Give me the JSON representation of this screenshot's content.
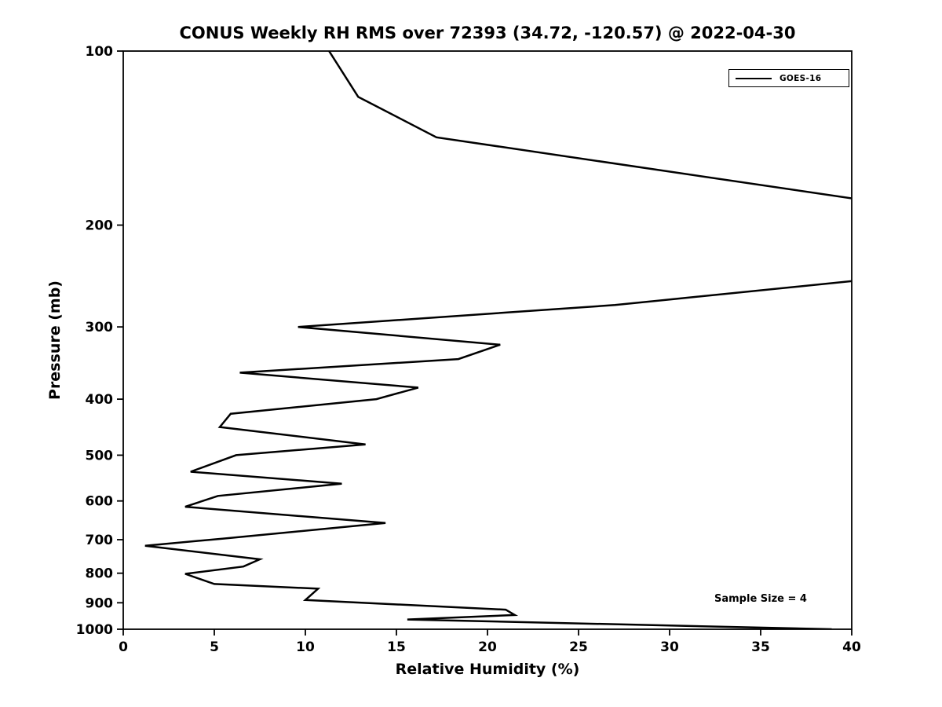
{
  "figure": {
    "background": "#ffffff",
    "line_color": "#000000"
  },
  "chart_data": {
    "type": "line",
    "title": "CONUS Weekly RH RMS over 72393 (34.72, -120.57) @ 2022-04-30",
    "xlabel": "Relative Humidity (%)",
    "ylabel": "Pressure (mb)",
    "xlim": [
      0,
      40
    ],
    "ylim": [
      100,
      1000
    ],
    "y_scale": "log",
    "y_inverted": true,
    "grid": false,
    "xticks": [
      0,
      5,
      10,
      15,
      20,
      25,
      30,
      35,
      40
    ],
    "yticks": [
      100,
      200,
      300,
      400,
      500,
      600,
      700,
      800,
      900,
      1000
    ],
    "legend": {
      "position": "top-right",
      "entries": [
        {
          "label": "GOES-16",
          "color": "#000000"
        }
      ]
    },
    "annotation": "Sample Size = 4",
    "series": [
      {
        "name": "GOES-16",
        "color": "#000000",
        "line_width": 2.5,
        "points_format": "[pressure_mb, rh_percent]",
        "points": [
          [
            100,
            11.3
          ],
          [
            120,
            12.9
          ],
          [
            141,
            17.2
          ],
          [
            200,
            50.0
          ],
          [
            250,
            40.0
          ],
          [
            275,
            27.0
          ],
          [
            300,
            9.6
          ],
          [
            322,
            20.7
          ],
          [
            341,
            18.4
          ],
          [
            360,
            6.4
          ],
          [
            382,
            16.2
          ],
          [
            400,
            13.9
          ],
          [
            424,
            5.9
          ],
          [
            447,
            5.3
          ],
          [
            479,
            13.3
          ],
          [
            500,
            6.2
          ],
          [
            534,
            3.7
          ],
          [
            560,
            12.0
          ],
          [
            588,
            5.2
          ],
          [
            614,
            3.4
          ],
          [
            655,
            14.4
          ],
          [
            697,
            5.5
          ],
          [
            717,
            1.2
          ],
          [
            757,
            7.5
          ],
          [
            779,
            6.6
          ],
          [
            802,
            3.4
          ],
          [
            835,
            5.0
          ],
          [
            851,
            10.7
          ],
          [
            890,
            10.0
          ],
          [
            925,
            21.0
          ],
          [
            945,
            21.5
          ],
          [
            962,
            15.6
          ],
          [
            1000,
            38.9
          ]
        ]
      }
    ]
  }
}
